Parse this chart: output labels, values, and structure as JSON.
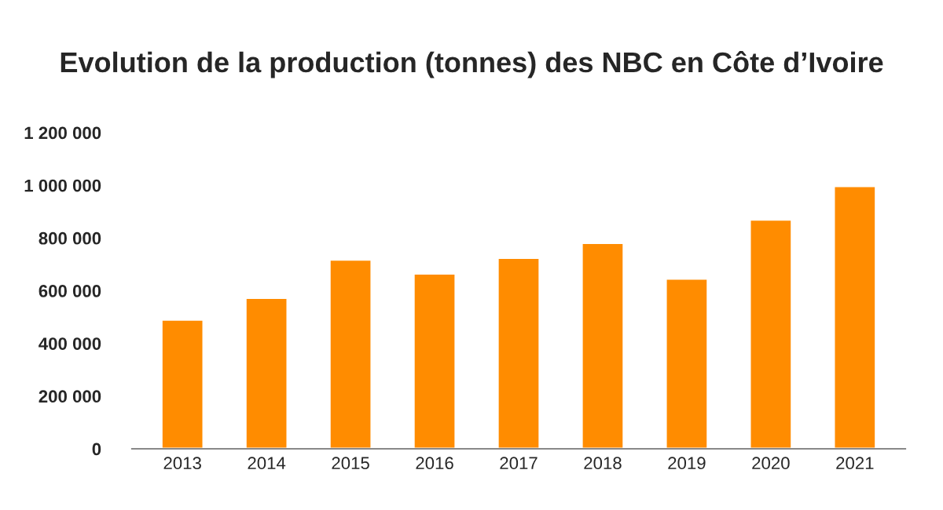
{
  "chart_data": {
    "type": "bar",
    "title": "Evolution de la production (tonnes) des NBC en Côte d’Ivoire",
    "categories": [
      "2013",
      "2014",
      "2015",
      "2016",
      "2017",
      "2018",
      "2019",
      "2020",
      "2021"
    ],
    "values": [
      490000,
      573000,
      718000,
      665000,
      725000,
      781000,
      646000,
      870000,
      997000
    ],
    "color": "#ff8c00",
    "ylim": [
      0,
      1200000
    ],
    "yticks": [
      {
        "value": 0,
        "label": "0"
      },
      {
        "value": 200000,
        "label": "200 000"
      },
      {
        "value": 400000,
        "label": "400 000"
      },
      {
        "value": 600000,
        "label": "600 000"
      },
      {
        "value": 800000,
        "label": "800 000"
      },
      {
        "value": 1000000,
        "label": "1 000 000"
      },
      {
        "value": 1200000,
        "label": "1 200 000"
      }
    ],
    "grid": false
  }
}
